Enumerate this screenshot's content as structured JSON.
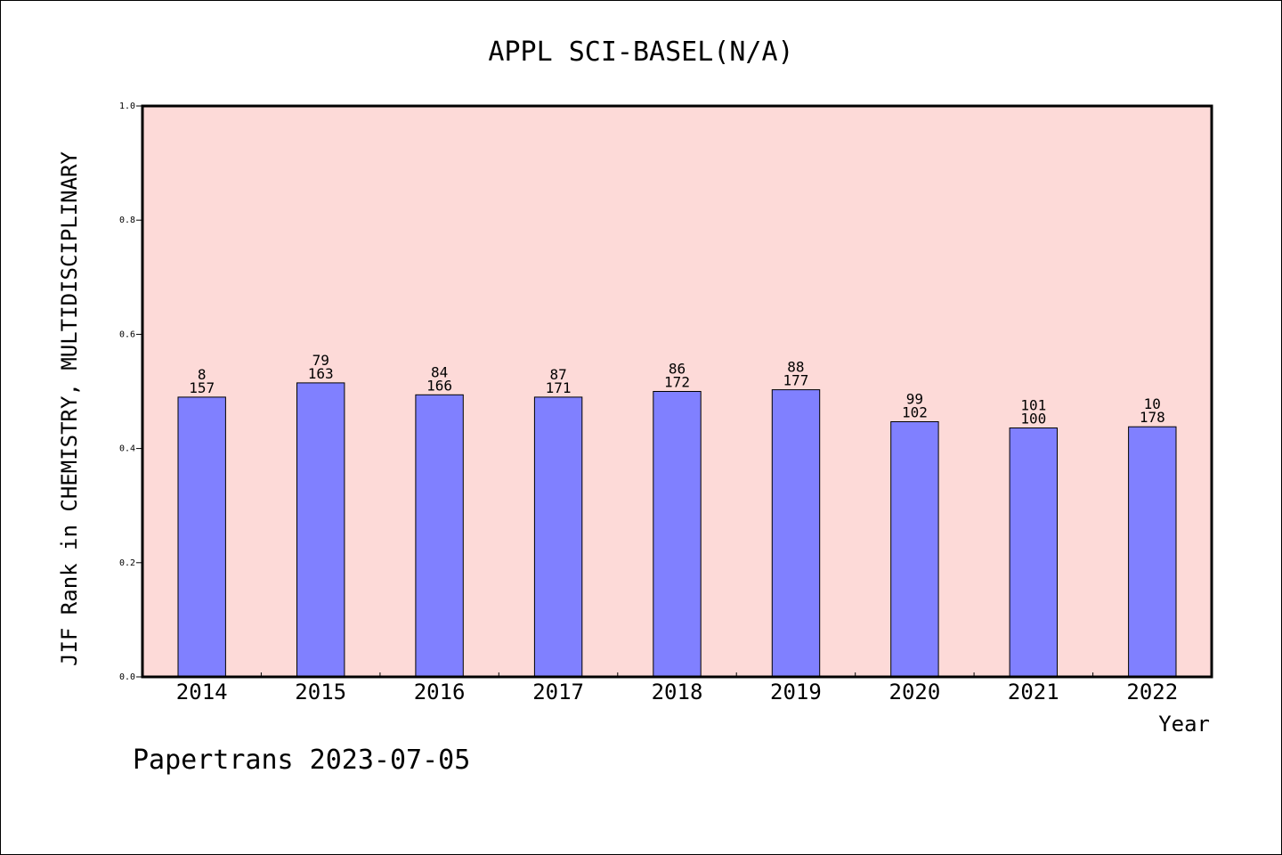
{
  "chart_data": {
    "type": "bar",
    "title": "APPL SCI-BASEL(N/A)",
    "xlabel": "Year",
    "ylabel": "JIF Rank in CHEMISTRY, MULTIDISCIPLINARY",
    "ylim": [
      0.0,
      1.0
    ],
    "yticks": [
      "0.0",
      "0.2",
      "0.4",
      "0.6",
      "0.8",
      "1.0"
    ],
    "categories": [
      "2014",
      "2015",
      "2016",
      "2017",
      "2018",
      "2019",
      "2020",
      "2021",
      "2022"
    ],
    "values": [
      0.49,
      0.515,
      0.494,
      0.49,
      0.5,
      0.503,
      0.447,
      0.436,
      0.438
    ],
    "rank_labels": [
      "8",
      "79",
      "84",
      "87",
      "86",
      "88",
      "99",
      "101",
      "10"
    ],
    "total_labels": [
      "157",
      "163",
      "166",
      "171",
      "172",
      "177",
      "102",
      "100",
      "178"
    ],
    "grid": false,
    "legend": "none",
    "plot_background": "#fddad8",
    "bar_color": "#8080ff",
    "footer": "Papertrans 2023-07-05"
  }
}
